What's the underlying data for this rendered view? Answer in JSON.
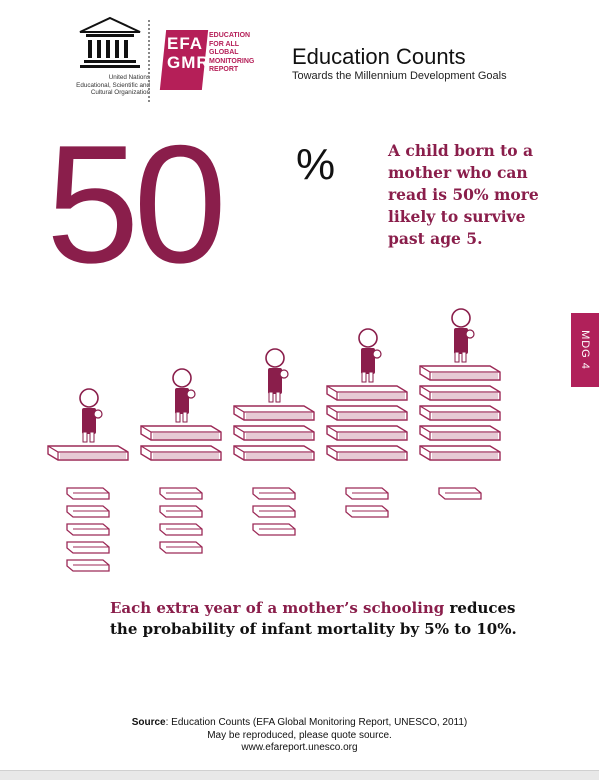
{
  "unesco": {
    "wordmark": "UNESCO",
    "org_lines": [
      "United Nations",
      "Educational, Scientific and",
      "Cultural Organization"
    ]
  },
  "efa": {
    "letters_top": "EFA",
    "letters_bottom": "GMR",
    "tagline_lines": [
      "EDUCATION",
      "FOR ALL",
      "GLOBAL",
      "MONITORING",
      "REPORT"
    ]
  },
  "header": {
    "title": "Education Counts",
    "subtitle": "Towards the Millennium Development Goals"
  },
  "headline": {
    "number": "50",
    "percent": "%",
    "fact": "A child born to a mother who can read is 50% more likely to survive past age 5."
  },
  "mdg_tab": "MDG 4",
  "illustration": {
    "stacks": [
      {
        "books_under": 1,
        "loose_books": 5
      },
      {
        "books_under": 2,
        "loose_books": 4
      },
      {
        "books_under": 3,
        "loose_books": 3
      },
      {
        "books_under": 4,
        "loose_books": 2
      },
      {
        "books_under": 5,
        "loose_books": 1
      }
    ],
    "colors": {
      "brand": "#8a1e4b",
      "line": "#9c2a57"
    }
  },
  "bottom": {
    "highlight": "Each extra year of a mother’s schooling",
    "rest_line1": "reduces",
    "line2": "the probability of infant mortality by 5% to 10%."
  },
  "source": {
    "label": "Source",
    "text": ": Education Counts (EFA Global Monitoring Report, UNESCO, 2011)",
    "line2": "May be reproduced, please quote source.",
    "line3": "www.efareport.unesco.org"
  }
}
